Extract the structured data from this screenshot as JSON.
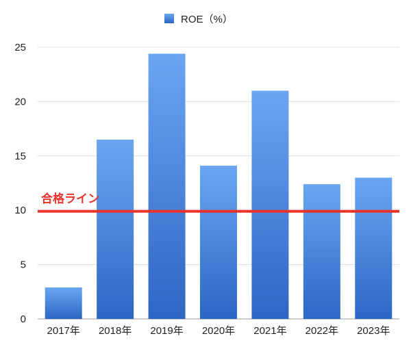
{
  "chart_data": {
    "type": "bar",
    "categories": [
      "2017年",
      "2018年",
      "2019年",
      "2020年",
      "2021年",
      "2022年",
      "2023年"
    ],
    "series": [
      {
        "name": "ROE（%）",
        "values": [
          2.9,
          16.5,
          24.4,
          14.1,
          21.0,
          12.4,
          13.0
        ]
      }
    ],
    "ylim": [
      0,
      25
    ],
    "yticks": [
      0,
      5,
      10,
      15,
      20,
      25
    ],
    "grid": true,
    "legend_position": "top-center",
    "reference_line": {
      "value": 9.9,
      "label": "合格ライン",
      "color": "#e8332a"
    },
    "colors": {
      "bar_top": "#6aa6f2",
      "bar_bottom": "#2e66c4",
      "grid": "#dddddd"
    }
  }
}
